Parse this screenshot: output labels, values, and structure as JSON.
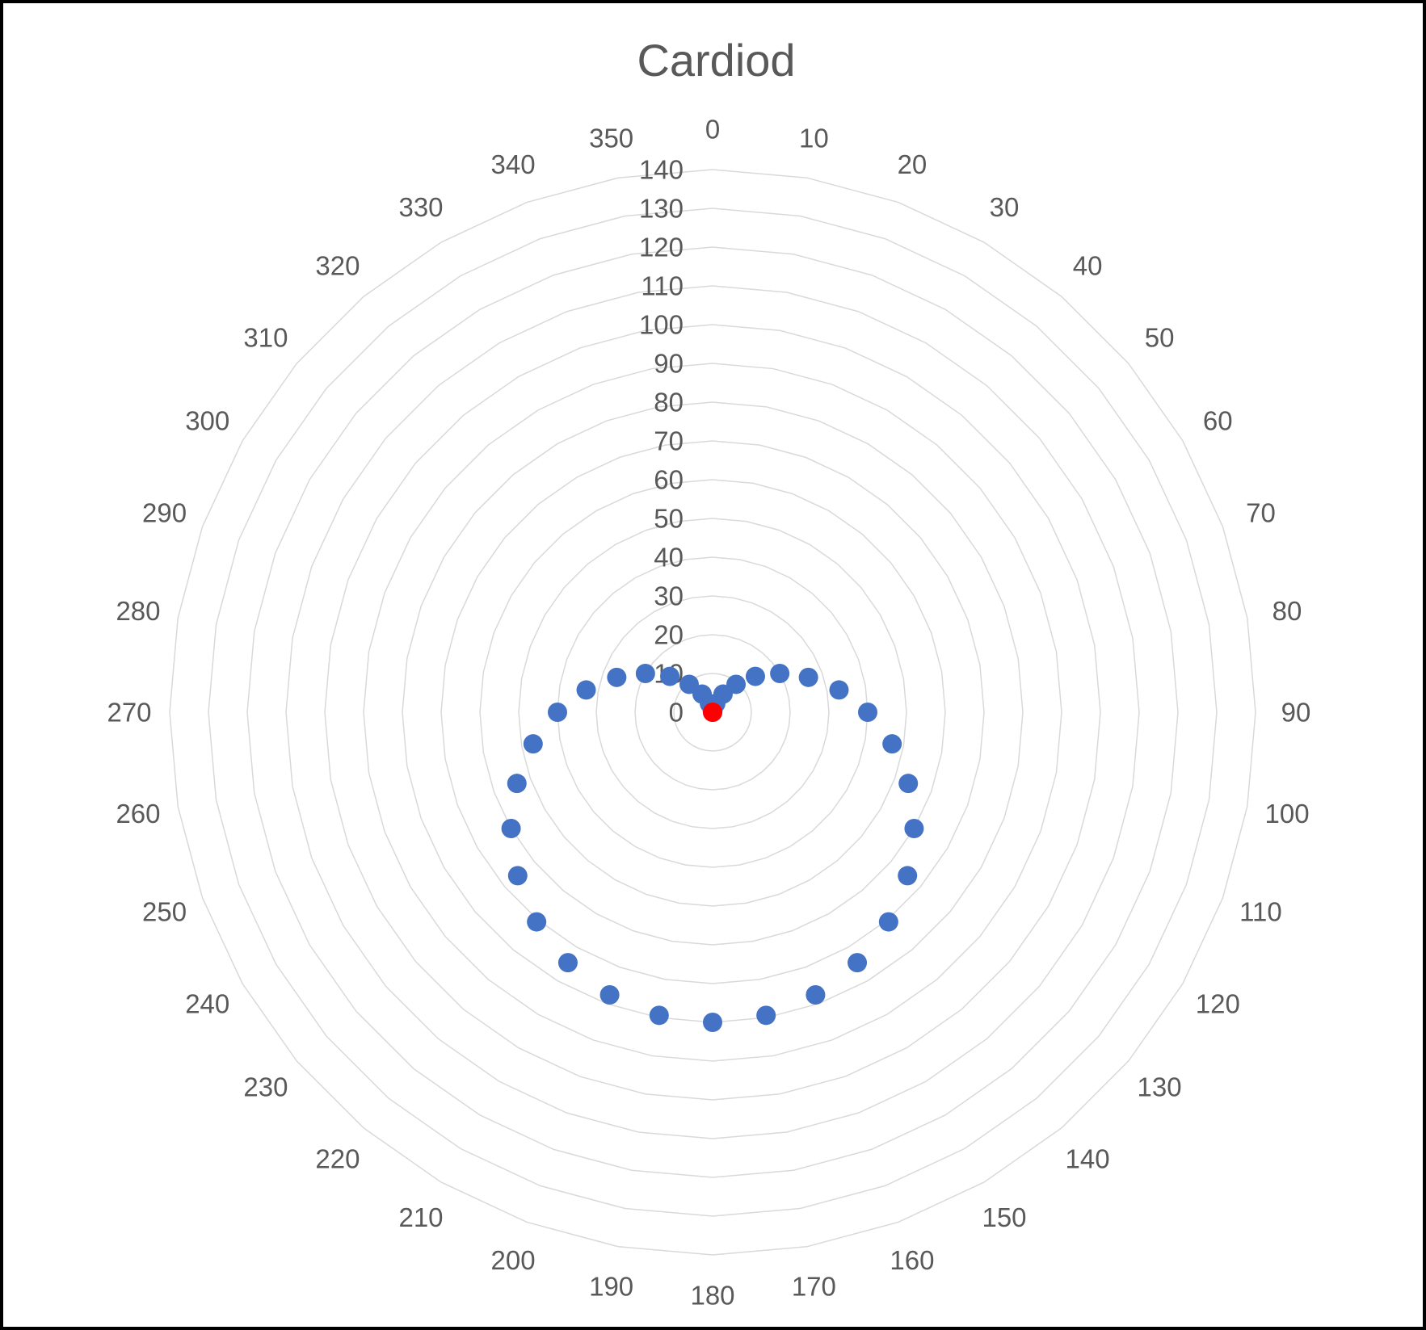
{
  "chart_data": {
    "type": "scatter",
    "subtype": "radar-markers",
    "title": "Cardiod",
    "radial_axis": {
      "min": 0,
      "max": 140,
      "step": 10,
      "tick_labels": [
        "0",
        "10",
        "20",
        "30",
        "40",
        "50",
        "60",
        "70",
        "80",
        "90",
        "100",
        "110",
        "120",
        "130",
        "140"
      ],
      "grid": true
    },
    "angular_axis": {
      "step_degrees": 10,
      "tick_labels": [
        "0",
        "10",
        "20",
        "30",
        "40",
        "50",
        "60",
        "70",
        "80",
        "90",
        "100",
        "110",
        "120",
        "130",
        "140",
        "150",
        "160",
        "170",
        "180",
        "190",
        "200",
        "210",
        "220",
        "230",
        "240",
        "250",
        "260",
        "270",
        "280",
        "290",
        "300",
        "310",
        "320",
        "330",
        "340",
        "350"
      ]
    },
    "series": [
      {
        "color": "#4472c4",
        "angles": [
          0,
          10,
          20,
          30,
          40,
          50,
          60,
          70,
          80,
          90,
          100,
          110,
          120,
          130,
          140,
          150,
          160,
          170,
          180,
          190,
          200,
          210,
          220,
          230,
          240,
          250,
          260,
          270,
          280,
          290,
          300,
          310,
          320,
          330,
          340,
          350
        ],
        "values": [
          0,
          0.6,
          2.4,
          5.4,
          9.4,
          14.4,
          20,
          26.3,
          33.1,
          40,
          47,
          53.7,
          60,
          65.6,
          70.6,
          74.6,
          77.6,
          79.4,
          80,
          79.4,
          77.6,
          74.6,
          70.6,
          65.6,
          60,
          53.7,
          47,
          40,
          33.1,
          26.3,
          20,
          14.4,
          9.4,
          5.4,
          2.4,
          0.6
        ]
      },
      {
        "color": "#ff0000",
        "angles": [
          0
        ],
        "values": [
          0
        ]
      }
    ],
    "legend": "none"
  }
}
